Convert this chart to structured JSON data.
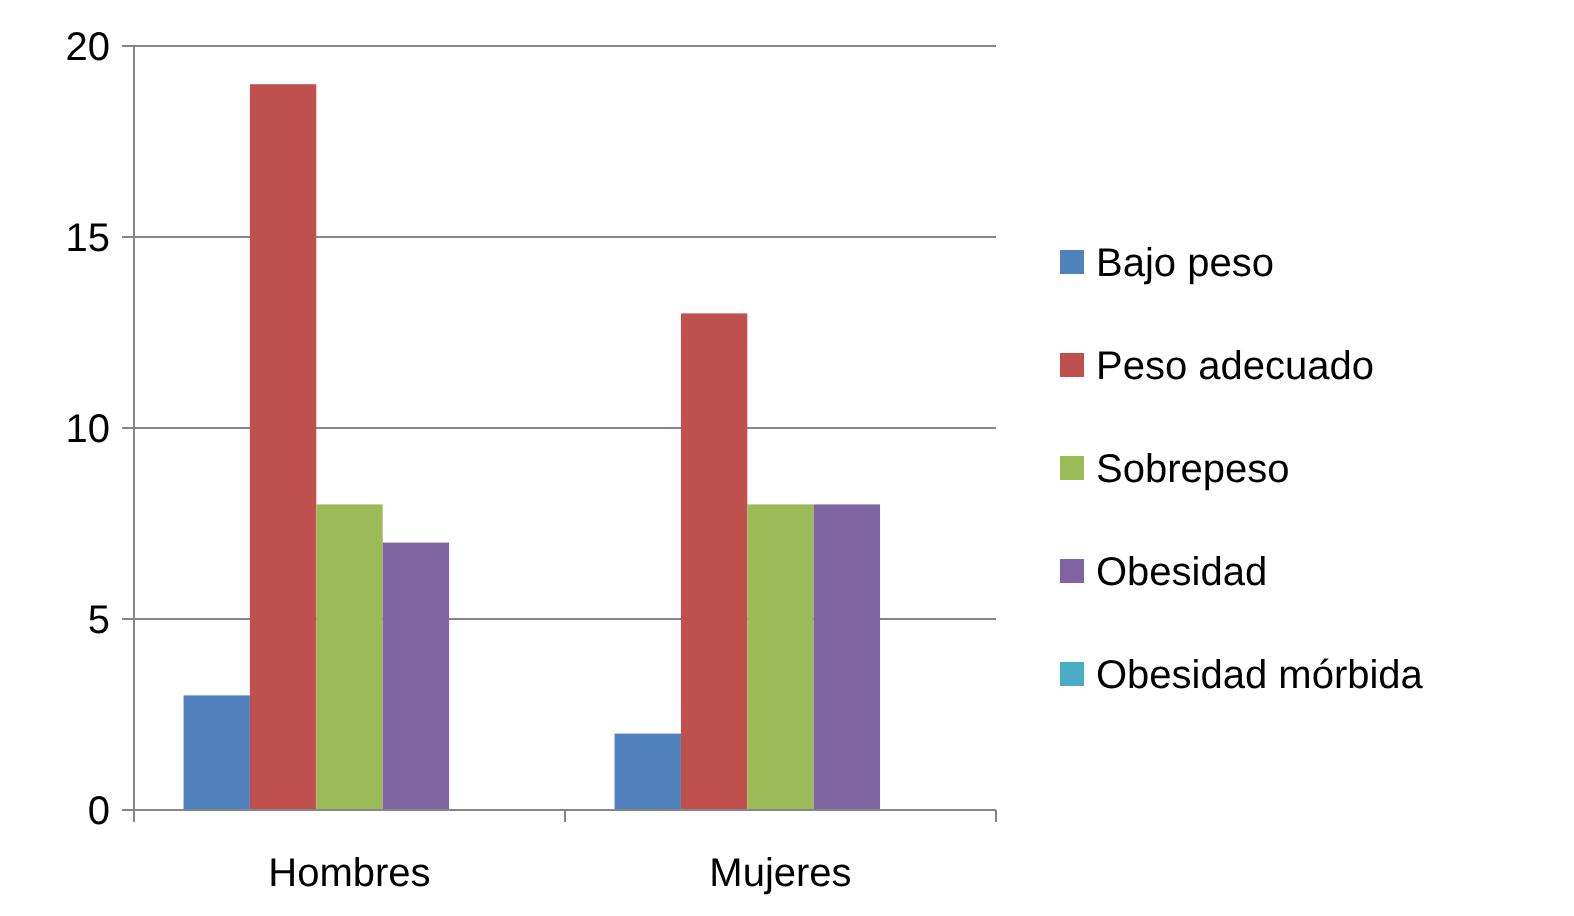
{
  "chart_data": {
    "type": "bar",
    "categories": [
      "Hombres",
      "Mujeres"
    ],
    "series": [
      {
        "name": "Bajo peso",
        "color": "#4f81bd",
        "values": [
          3,
          2
        ]
      },
      {
        "name": "Peso adecuado",
        "color": "#c0504d",
        "values": [
          19,
          13
        ]
      },
      {
        "name": "Sobrepeso",
        "color": "#9bbb59",
        "values": [
          8,
          8
        ]
      },
      {
        "name": "Obesidad",
        "color": "#8064a2",
        "values": [
          7,
          8
        ]
      },
      {
        "name": "Obesidad mórbida",
        "color": "#4bacc6",
        "values": [
          0,
          0
        ]
      }
    ],
    "ylim": [
      0,
      20
    ],
    "yticks": [
      0,
      5,
      10,
      15,
      20
    ],
    "grid": "y",
    "legend": "right"
  }
}
